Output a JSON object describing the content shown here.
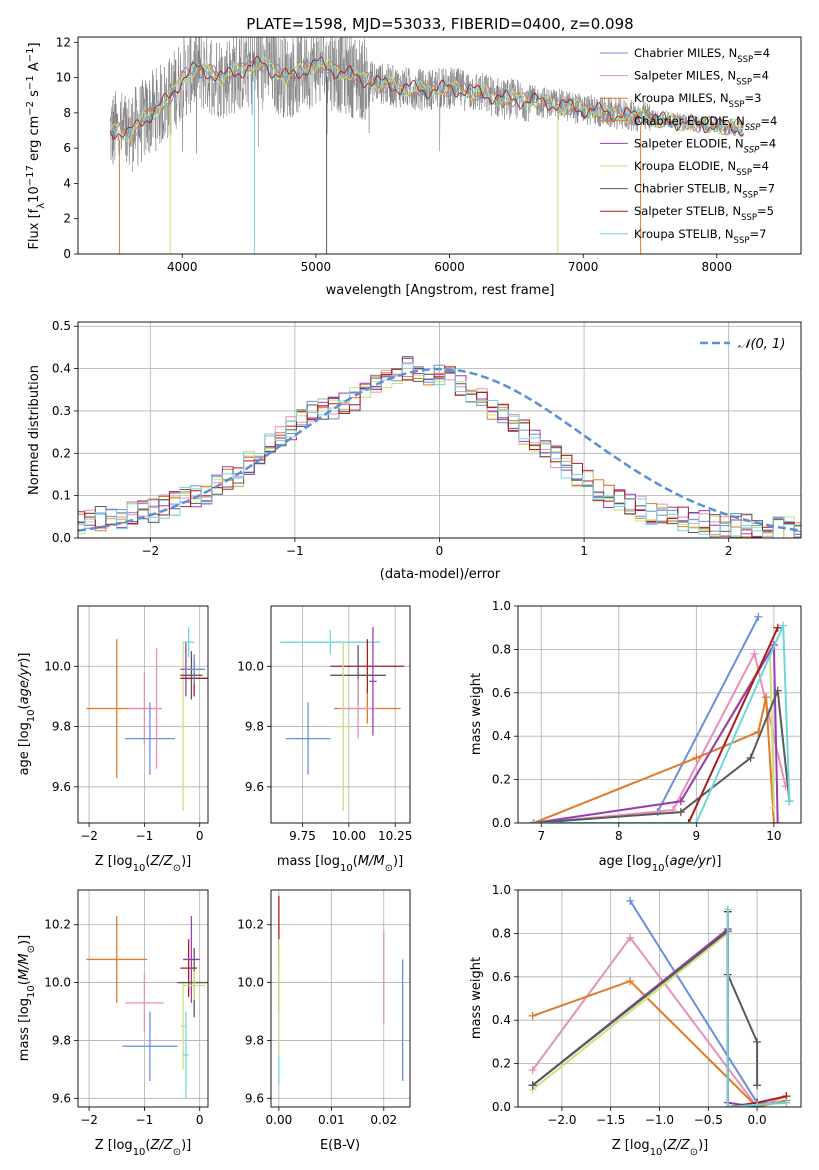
{
  "figure": {
    "title": "PLATE=1598, MJD=53033, FIBERID=0400, z=0.098",
    "colors": [
      "#6a8fdc",
      "#e98fb8",
      "#e07a28",
      "#9e3ab8",
      "#c9e27a",
      "#5a5a5a",
      "#a81e1e",
      "#6ed6dc"
    ]
  },
  "chart_data": [
    {
      "id": "spectrum",
      "type": "line",
      "title": "PLATE=1598, MJD=53033, FIBERID=0400, z=0.098",
      "xlabel": "wavelength [Angstrom, rest frame]",
      "ylabel": "Flux [f_λ 10^-17 erg cm^-2 s^-1 A^-1]",
      "xlim": [
        3220,
        8630
      ],
      "ylim": [
        0,
        12.3
      ],
      "xticks": [
        4000,
        5000,
        6000,
        7000,
        8000
      ],
      "yticks": [
        0,
        2,
        4,
        6,
        8,
        10,
        12
      ],
      "grid": false,
      "legend_placement": "top-right",
      "continuum": {
        "x": [
          3460,
          3520,
          3600,
          3700,
          3800,
          3900,
          4000,
          4100,
          4200,
          4300,
          4400,
          4500,
          4600,
          4700,
          4800,
          4900,
          5000,
          5200,
          5400,
          5600,
          5800,
          6000,
          6200,
          6400,
          6600,
          6800,
          7000,
          7200,
          7400,
          7600,
          7800,
          8000,
          8200
        ],
        "y": [
          6.9,
          7.0,
          6.8,
          7.5,
          8.2,
          8.8,
          10.0,
          10.5,
          10.3,
          10.0,
          10.3,
          10.6,
          10.8,
          10.3,
          10.0,
          10.4,
          10.8,
          10.3,
          9.8,
          9.5,
          9.3,
          9.4,
          9.2,
          8.8,
          8.7,
          8.5,
          8.2,
          8.0,
          7.8,
          7.6,
          7.4,
          7.3,
          7.1
        ]
      },
      "series": [
        {
          "name": "Chabrier MILES, N_SSP=4"
        },
        {
          "name": "Salpeter MILES, N_SSP=4"
        },
        {
          "name": "Kroupa MILES, N_SSP=3"
        },
        {
          "name": "Chabrier ELODIE, N_SSP=4"
        },
        {
          "name": "Salpeter ELODIE, N_SSP=4"
        },
        {
          "name": "Kroupa ELODIE, N_SSP=4"
        },
        {
          "name": "Chabrier STELIB, N_SSP=7"
        },
        {
          "name": "Salpeter STELIB, N_SSP=5"
        },
        {
          "name": "Kroupa STELIB, N_SSP=7"
        }
      ],
      "legend": [
        {
          "label": "Chabrier MILES, N",
          "sub": "SSP",
          "suffix": "=4",
          "color": "#6a8fdc"
        },
        {
          "label": "Salpeter MILES, N",
          "sub": "SSP",
          "suffix": "=4",
          "color": "#e98fb8"
        },
        {
          "label": "Kroupa MILES, N",
          "sub": "SSP",
          "suffix": "=3",
          "color": "#e07a28"
        },
        {
          "label": "Chabrier ELODIE, N",
          "sub": "SSP",
          "suffix": "=4",
          "color": "#e07a28"
        },
        {
          "label": "Salpeter ELODIE, N",
          "sub": "SSP",
          "suffix": "=4",
          "color": "#9e3ab8"
        },
        {
          "label": "Kroupa ELODIE, N",
          "sub": "SSP",
          "suffix": "=4",
          "color": "#c9e27a"
        },
        {
          "label": "Chabrier STELIB, N",
          "sub": "SSP",
          "suffix": "=7",
          "color": "#5a5a5a"
        },
        {
          "label": "Salpeter STELIB, N",
          "sub": "SSP",
          "suffix": "=5",
          "color": "#a81e1e"
        },
        {
          "label": "Kroupa STELIB, N",
          "sub": "SSP",
          "suffix": "=7",
          "color": "#6ed6dc"
        }
      ]
    },
    {
      "id": "residuals",
      "type": "line",
      "xlabel": "(data-model)/error",
      "ylabel": "Normed distribution",
      "xlim": [
        -2.5,
        2.5
      ],
      "ylim": [
        0,
        0.51
      ],
      "xticks": [
        -2,
        -1,
        0,
        1,
        2
      ],
      "yticks": [
        0.0,
        0.1,
        0.2,
        0.3,
        0.4,
        0.5
      ],
      "grid": true,
      "legend": [
        {
          "label": "𝒩(0, 1)",
          "color": "#5b8fd6"
        }
      ],
      "legend_placement": "top-right",
      "bin_width": 0.1,
      "histogram": [
        0.035,
        0.04,
        0.045,
        0.045,
        0.05,
        0.05,
        0.055,
        0.06,
        0.065,
        0.075,
        0.08,
        0.09,
        0.095,
        0.105,
        0.12,
        0.14,
        0.15,
        0.175,
        0.2,
        0.22,
        0.245,
        0.26,
        0.28,
        0.3,
        0.31,
        0.31,
        0.315,
        0.33,
        0.35,
        0.37,
        0.385,
        0.39,
        0.4,
        0.395,
        0.39,
        0.385,
        0.375,
        0.36,
        0.345,
        0.33,
        0.31,
        0.29,
        0.27,
        0.25,
        0.23,
        0.21,
        0.19,
        0.17,
        0.15,
        0.13,
        0.115,
        0.1,
        0.09,
        0.08,
        0.07,
        0.06,
        0.055,
        0.05,
        0.045,
        0.04,
        0.035,
        0.03,
        0.03,
        0.03,
        0.028,
        0.026,
        0.024,
        0.022,
        0.02,
        0.02,
        0.02
      ]
    },
    {
      "id": "age-vs-Z",
      "type": "scatter",
      "xlabel": "Z [log10(Z/Z⊙)]",
      "ylabel": "age  [log10(age/yr)]",
      "xlim": [
        -2.2,
        0.15
      ],
      "ylim": [
        9.48,
        10.2
      ],
      "xticks": [
        -2,
        -1,
        0
      ],
      "yticks": [
        9.6,
        9.8,
        10.0
      ],
      "grid": true,
      "points": [
        {
          "x": -1.5,
          "y": 9.86,
          "xerr": 0.55,
          "yerr": 0.23,
          "color": "#e07a28"
        },
        {
          "x": -1.0,
          "y": 9.86,
          "xerr": 0.3,
          "yerr": 0.12,
          "color": "#e98fb8"
        },
        {
          "x": -0.9,
          "y": 9.76,
          "xerr": 0.45,
          "yerr": 0.12,
          "color": "#6a8fdc"
        },
        {
          "x": -0.78,
          "y": 9.86,
          "xerr": 0.1,
          "yerr": 0.2,
          "color": "#e98fb8"
        },
        {
          "x": -0.3,
          "y": 9.8,
          "xerr": 0.05,
          "yerr": 0.28,
          "color": "#c9e27a"
        },
        {
          "x": -0.25,
          "y": 9.99,
          "xerr": 0.1,
          "yerr": 0.09,
          "color": "#9e3ab8"
        },
        {
          "x": -0.2,
          "y": 10.08,
          "xerr": 0.1,
          "yerr": 0.05,
          "color": "#6ed6dc"
        },
        {
          "x": -0.15,
          "y": 9.97,
          "xerr": 0.2,
          "yerr": 0.08,
          "color": "#5a5a5a"
        },
        {
          "x": -0.1,
          "y": 9.96,
          "xerr": 0.25,
          "yerr": 0.06,
          "color": "#a81e1e"
        },
        {
          "x": -0.1,
          "y": 9.99,
          "xerr": 0.2,
          "yerr": 0.05,
          "color": "#6a8fdc"
        }
      ]
    },
    {
      "id": "age-vs-mass",
      "type": "scatter",
      "xlabel": "mass [log10(M/M⊙)]",
      "ylabel": "",
      "xlim": [
        9.58,
        10.33
      ],
      "ylim": [
        9.48,
        10.2
      ],
      "xticks": [
        9.75,
        10.0,
        10.25
      ],
      "yticks": [
        9.6,
        9.8,
        10.0
      ],
      "grid": true,
      "points": [
        {
          "x": 9.9,
          "y": 10.08,
          "xerr": 0.27,
          "yerr": 0.04,
          "color": "#6ed6dc"
        },
        {
          "x": 9.78,
          "y": 9.76,
          "xerr": 0.12,
          "yerr": 0.12,
          "color": "#6a8fdc"
        },
        {
          "x": 10.1,
          "y": 10.0,
          "xerr": 0.2,
          "yerr": 0.09,
          "color": "#a81e1e"
        },
        {
          "x": 10.05,
          "y": 9.97,
          "xerr": 0.15,
          "yerr": 0.1,
          "color": "#5a5a5a"
        },
        {
          "x": 10.1,
          "y": 9.86,
          "xerr": 0.18,
          "yerr": 0.05,
          "color": "#e07a28"
        },
        {
          "x": 10.05,
          "y": 9.86,
          "xerr": 0.1,
          "yerr": 0.1,
          "color": "#e98fb8"
        },
        {
          "x": 9.97,
          "y": 9.8,
          "xerr": 0.05,
          "yerr": 0.28,
          "color": "#c9e27a"
        },
        {
          "x": 10.13,
          "y": 9.95,
          "xerr": 0.02,
          "yerr": 0.18,
          "color": "#9e3ab8"
        }
      ]
    },
    {
      "id": "massweight-vs-age",
      "type": "line",
      "xlabel": "age  [log10(age/yr)]",
      "ylabel": "mass weight",
      "xlim": [
        6.7,
        10.35
      ],
      "ylim": [
        0.0,
        1.0
      ],
      "xticks": [
        7,
        8,
        9,
        10
      ],
      "yticks": [
        0.0,
        0.2,
        0.4,
        0.6,
        0.8,
        1.0
      ],
      "grid": true,
      "series": [
        {
          "color": "#6a8fdc",
          "x": [
            6.9,
            8.5,
            9.8
          ],
          "y": [
            0.0,
            0.05,
            0.95
          ]
        },
        {
          "color": "#e98fb8",
          "x": [
            7.0,
            8.7,
            9.75,
            10.15
          ],
          "y": [
            0.0,
            0.06,
            0.78,
            0.17
          ]
        },
        {
          "color": "#e07a28",
          "x": [
            6.9,
            9.0,
            9.8,
            9.9,
            10.0
          ],
          "y": [
            0.0,
            0.3,
            0.42,
            0.58,
            0.0
          ]
        },
        {
          "color": "#c9e27a",
          "x": [
            6.9,
            8.8,
            9.95,
            10.0
          ],
          "y": [
            0.0,
            0.1,
            0.8,
            0.07
          ]
        },
        {
          "color": "#9e3ab8",
          "x": [
            6.9,
            8.8,
            10.0,
            10.05
          ],
          "y": [
            0.0,
            0.1,
            0.82,
            0.0
          ]
        },
        {
          "color": "#5a5a5a",
          "x": [
            6.9,
            8.8,
            9.7,
            10.05,
            10.2
          ],
          "y": [
            0.0,
            0.05,
            0.3,
            0.61,
            0.1
          ]
        },
        {
          "color": "#a81e1e",
          "x": [
            6.9,
            8.9,
            10.05
          ],
          "y": [
            0.0,
            0.0,
            0.9
          ]
        },
        {
          "color": "#6ed6dc",
          "x": [
            6.9,
            9.0,
            10.12,
            10.2
          ],
          "y": [
            0.0,
            0.0,
            0.91,
            0.1
          ]
        }
      ]
    },
    {
      "id": "mass-vs-Z",
      "type": "scatter",
      "xlabel": "Z [log10(Z/Z⊙)]",
      "ylabel": "mass [log10(M/M⊙)]",
      "xlim": [
        -2.2,
        0.15
      ],
      "ylim": [
        9.57,
        10.32
      ],
      "xticks": [
        -2,
        -1,
        0
      ],
      "yticks": [
        9.6,
        9.8,
        10.0,
        10.2
      ],
      "grid": true,
      "points": [
        {
          "x": -1.5,
          "y": 10.08,
          "xerr": 0.55,
          "yerr": 0.15,
          "color": "#e07a28"
        },
        {
          "x": -0.9,
          "y": 9.78,
          "xerr": 0.5,
          "yerr": 0.12,
          "color": "#6a8fdc"
        },
        {
          "x": -1.0,
          "y": 9.93,
          "xerr": 0.35,
          "yerr": 0.1,
          "color": "#e98fb8"
        },
        {
          "x": -0.3,
          "y": 9.85,
          "xerr": 0.05,
          "yerr": 0.15,
          "color": "#c9e27a"
        },
        {
          "x": -0.25,
          "y": 9.75,
          "xerr": 0.05,
          "yerr": 0.15,
          "color": "#6ed6dc"
        },
        {
          "x": -0.2,
          "y": 10.05,
          "xerr": 0.15,
          "yerr": 0.1,
          "color": "#a81e1e"
        },
        {
          "x": -0.15,
          "y": 10.08,
          "xerr": 0.15,
          "yerr": 0.15,
          "color": "#9e3ab8"
        },
        {
          "x": -0.1,
          "y": 10.0,
          "xerr": 0.3,
          "yerr": 0.12,
          "color": "#5a5a5a"
        },
        {
          "x": -0.1,
          "y": 9.99,
          "xerr": 0.2,
          "yerr": 0.05,
          "color": "#c9e27a"
        }
      ]
    },
    {
      "id": "mass-vs-ebv",
      "type": "scatter",
      "xlabel": "E(B-V)",
      "ylabel": "",
      "xlim": [
        -0.0015,
        0.025
      ],
      "ylim": [
        9.57,
        10.32
      ],
      "xticks": [
        0.0,
        0.01,
        0.02
      ],
      "yticks": [
        9.6,
        9.8,
        10.0,
        10.2
      ],
      "grid": true,
      "points": [
        {
          "x": 0.0,
          "y": 10.1,
          "xerr": 0.0,
          "yerr": 0.2,
          "color": "#a81e1e"
        },
        {
          "x": 0.0,
          "y": 9.85,
          "xerr": 0.0,
          "yerr": 0.2,
          "color": "#6ed6dc"
        },
        {
          "x": 0.0,
          "y": 9.95,
          "xerr": 0.0,
          "yerr": 0.2,
          "color": "#c9e27a"
        },
        {
          "x": 0.02,
          "y": 10.02,
          "xerr": 0.0,
          "yerr": 0.16,
          "color": "#e98fb8"
        },
        {
          "x": 0.0236,
          "y": 9.87,
          "xerr": 0.0,
          "yerr": 0.21,
          "color": "#6a8fdc"
        }
      ]
    },
    {
      "id": "massweight-vs-Z",
      "type": "line",
      "xlabel": "Z [log10(Z/Z⊙)]",
      "ylabel": "mass weight",
      "xlim": [
        -2.45,
        0.45
      ],
      "ylim": [
        0.0,
        1.0
      ],
      "xticks": [
        -2.0,
        -1.5,
        -1.0,
        -0.5,
        0.0
      ],
      "yticks": [
        0.0,
        0.2,
        0.4,
        0.6,
        0.8,
        1.0
      ],
      "grid": true,
      "series": [
        {
          "color": "#6a8fdc",
          "x": [
            -1.3,
            0.0,
            0.3
          ],
          "y": [
            0.95,
            0.02,
            0.02
          ]
        },
        {
          "color": "#e98fb8",
          "x": [
            -2.3,
            -1.3,
            0.0,
            0.3
          ],
          "y": [
            0.17,
            0.78,
            0.0,
            0.05
          ]
        },
        {
          "color": "#e07a28",
          "x": [
            -2.3,
            -1.3,
            0.0,
            0.3
          ],
          "y": [
            0.42,
            0.58,
            0.0,
            0.03
          ]
        },
        {
          "color": "#c9e27a",
          "x": [
            -2.3,
            -0.3,
            -0.3,
            0.0
          ],
          "y": [
            0.08,
            0.8,
            0.0,
            0.0
          ]
        },
        {
          "color": "#9e3ab8",
          "x": [
            -2.3,
            -0.3,
            -0.3,
            0.0
          ],
          "y": [
            0.1,
            0.82,
            0.02,
            0.0
          ]
        },
        {
          "color": "#5a5a5a",
          "x": [
            -2.3,
            -0.3,
            -0.3,
            0.0,
            0.0
          ],
          "y": [
            0.1,
            0.81,
            0.61,
            0.3,
            0.1
          ]
        },
        {
          "color": "#a81e1e",
          "x": [
            -0.3,
            -0.3,
            0.0,
            0.3
          ],
          "y": [
            0.9,
            0.0,
            0.02,
            0.05
          ]
        },
        {
          "color": "#6ed6dc",
          "x": [
            -0.3,
            -0.3,
            0.0,
            0.3
          ],
          "y": [
            0.91,
            0.0,
            0.01,
            0.02
          ]
        }
      ]
    }
  ]
}
